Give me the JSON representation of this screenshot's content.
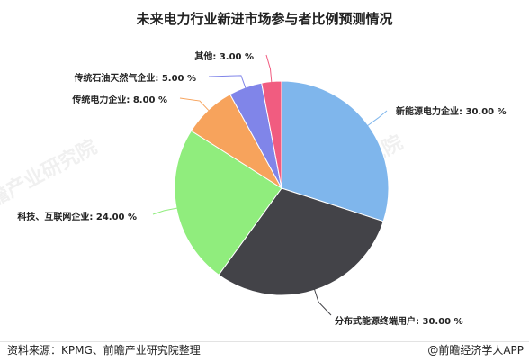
{
  "chart_data": {
    "type": "pie",
    "title": "未来电力行业新进市场参与者比例预测情况",
    "slices": [
      {
        "label": "新能源电力企业",
        "value": 30.0,
        "display": "30.00 %",
        "color": "#7fb6ec"
      },
      {
        "label": "分布式能源终端用户",
        "value": 30.0,
        "display": "30.00 %",
        "color": "#434348"
      },
      {
        "label": "科技、互联网企业",
        "value": 24.0,
        "display": "24.00 %",
        "color": "#90ed7d"
      },
      {
        "label": "传统电力企业",
        "value": 8.0,
        "display": "8.00 %",
        "color": "#f7a35c"
      },
      {
        "label": "传统石油天然气企业",
        "value": 5.0,
        "display": "5.00 %",
        "color": "#8085e9"
      },
      {
        "label": "其他",
        "value": 3.0,
        "display": "3.00 %",
        "color": "#f15c80"
      }
    ]
  },
  "footer": {
    "source": "资料来源：KPMG、前瞻产业研究院整理",
    "brand": "@前瞻经济学人APP"
  },
  "watermark": "前瞻产业研究院"
}
